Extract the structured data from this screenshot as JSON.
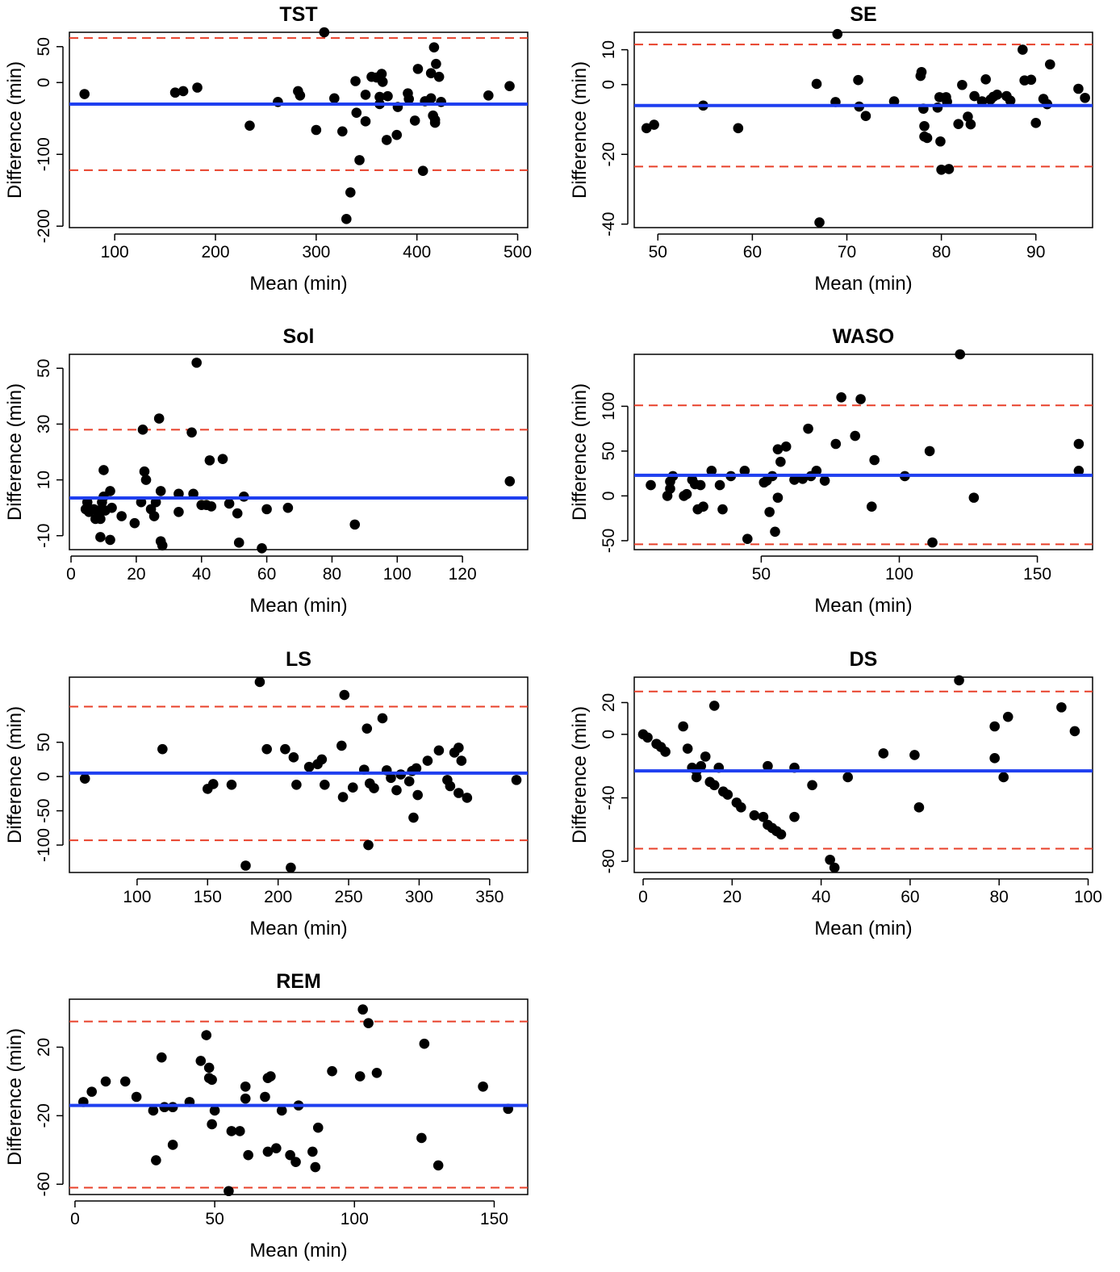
{
  "figure": {
    "title": "Bland-Altman plots"
  },
  "chart_data": [
    {
      "type": "scatter",
      "title": "TST",
      "xlabel": "Mean (min)",
      "ylabel": "Difference (min)",
      "xlim": [
        55,
        510
      ],
      "ylim": [
        -202,
        70
      ],
      "xticks": [
        100,
        200,
        300,
        400,
        500
      ],
      "yticks": [
        -200,
        -100,
        0,
        50
      ],
      "mean_diff": -30,
      "loa_upper": 62,
      "loa_lower": -122,
      "points": [
        [
          70,
          -16
        ],
        [
          160,
          -14
        ],
        [
          168,
          -12
        ],
        [
          182,
          -7
        ],
        [
          234,
          -60
        ],
        [
          262,
          -27
        ],
        [
          282,
          -12
        ],
        [
          284,
          -18
        ],
        [
          300,
          -66
        ],
        [
          308,
          70
        ],
        [
          318,
          -22
        ],
        [
          326,
          -68
        ],
        [
          334,
          -153
        ],
        [
          339,
          2
        ],
        [
          340,
          -42
        ],
        [
          343,
          -108
        ],
        [
          349,
          -17
        ],
        [
          349,
          -54
        ],
        [
          355,
          8
        ],
        [
          360,
          7
        ],
        [
          363,
          -20
        ],
        [
          363,
          -30
        ],
        [
          365,
          12
        ],
        [
          366,
          1
        ],
        [
          370,
          -80
        ],
        [
          380,
          -73
        ],
        [
          381,
          -34
        ],
        [
          391,
          -15
        ],
        [
          392,
          -23
        ],
        [
          398,
          -53
        ],
        [
          401,
          19
        ],
        [
          406,
          -123
        ],
        [
          408,
          -26
        ],
        [
          414,
          -22
        ],
        [
          414,
          13
        ],
        [
          416,
          -46
        ],
        [
          417,
          49
        ],
        [
          418,
          -56
        ],
        [
          418,
          -52
        ],
        [
          419,
          26
        ],
        [
          422,
          8
        ],
        [
          424,
          -27
        ],
        [
          471,
          -18
        ],
        [
          492,
          -5
        ],
        [
          330,
          -190
        ],
        [
          371,
          -19
        ]
      ]
    },
    {
      "type": "scatter",
      "title": "SE",
      "xlabel": "Mean (min)",
      "ylabel": "Difference (min)",
      "xlim": [
        47.5,
        96
      ],
      "ylim": [
        -41,
        15
      ],
      "xticks": [
        50,
        60,
        70,
        80,
        90
      ],
      "yticks": [
        -40,
        -20,
        0,
        10
      ],
      "mean_diff": -6,
      "loa_upper": 11.5,
      "loa_lower": -23.5,
      "points": [
        [
          48.8,
          -12.5
        ],
        [
          49.6,
          -11.5
        ],
        [
          54.8,
          -6
        ],
        [
          58.5,
          -12.5
        ],
        [
          66.8,
          0.2
        ],
        [
          67.1,
          -39.5
        ],
        [
          68.8,
          -5
        ],
        [
          69,
          14.5
        ],
        [
          71.2,
          1.3
        ],
        [
          71.3,
          -6.3
        ],
        [
          72,
          -9
        ],
        [
          75,
          -4.8
        ],
        [
          77.8,
          2.5
        ],
        [
          77.9,
          3.6
        ],
        [
          78.1,
          -6.9
        ],
        [
          78.2,
          -11.9
        ],
        [
          78.2,
          -14.9
        ],
        [
          78.5,
          -15.3
        ],
        [
          79.6,
          -6.6
        ],
        [
          79.8,
          -3.6
        ],
        [
          79.9,
          -16.3
        ],
        [
          80,
          -24.4
        ],
        [
          80.5,
          -3.6
        ],
        [
          80.6,
          -4.9
        ],
        [
          80.8,
          -24.2
        ],
        [
          81.8,
          -11.3
        ],
        [
          82.2,
          -0.1
        ],
        [
          82.8,
          -9.2
        ],
        [
          83.1,
          -11.4
        ],
        [
          83.5,
          -3.3
        ],
        [
          84.3,
          -4.8
        ],
        [
          84.7,
          1.5
        ],
        [
          85.2,
          -4.3
        ],
        [
          85.5,
          -3.5
        ],
        [
          85.9,
          -2.9
        ],
        [
          86.9,
          -3.3
        ],
        [
          87.3,
          -4.6
        ],
        [
          88.6,
          10
        ],
        [
          88.8,
          1.2
        ],
        [
          89.5,
          1.4
        ],
        [
          90,
          -11
        ],
        [
          90.8,
          -4.1
        ],
        [
          91.2,
          -5.6
        ],
        [
          91.5,
          5.8
        ],
        [
          94.5,
          -1.2
        ],
        [
          95.2,
          -3.8
        ]
      ]
    },
    {
      "type": "scatter",
      "title": "Sol",
      "xlabel": "Mean (min)",
      "ylabel": "Difference (min)",
      "xlim": [
        -0.5,
        140
      ],
      "ylim": [
        -15,
        55
      ],
      "xticks": [
        0,
        20,
        40,
        60,
        80,
        100,
        120
      ],
      "yticks": [
        -10,
        10,
        30,
        50
      ],
      "mean_diff": 3.5,
      "loa_upper": 28,
      "loa_lower": null,
      "points": [
        [
          4.5,
          -0.5
        ],
        [
          5,
          2
        ],
        [
          5.5,
          -1.5
        ],
        [
          7,
          -0.5
        ],
        [
          7.5,
          -4
        ],
        [
          8.5,
          -1
        ],
        [
          9,
          -10.5
        ],
        [
          9,
          -4
        ],
        [
          9.5,
          2
        ],
        [
          10,
          13.5
        ],
        [
          10,
          4
        ],
        [
          10.5,
          -1
        ],
        [
          12,
          6
        ],
        [
          12,
          -11.5
        ],
        [
          12.5,
          0
        ],
        [
          15.5,
          -3
        ],
        [
          19.5,
          -5.5
        ],
        [
          21.5,
          2
        ],
        [
          22,
          28
        ],
        [
          22.5,
          13
        ],
        [
          23,
          10
        ],
        [
          24.5,
          -0.5
        ],
        [
          25.5,
          -3
        ],
        [
          26,
          2
        ],
        [
          27,
          32
        ],
        [
          27.5,
          6
        ],
        [
          27.5,
          -12
        ],
        [
          28,
          -13.5
        ],
        [
          33,
          -1.5
        ],
        [
          33,
          5
        ],
        [
          37,
          27
        ],
        [
          37.5,
          5
        ],
        [
          38.5,
          52
        ],
        [
          40,
          1
        ],
        [
          41.5,
          1
        ],
        [
          42.5,
          17
        ],
        [
          43,
          0.5
        ],
        [
          46.5,
          17.5
        ],
        [
          48.5,
          1.5
        ],
        [
          51,
          -2
        ],
        [
          51.5,
          -12.5
        ],
        [
          53,
          4
        ],
        [
          58.5,
          -14.5
        ],
        [
          60,
          -0.5
        ],
        [
          66.5,
          0
        ],
        [
          87,
          -6
        ],
        [
          134.5,
          9.5
        ]
      ]
    },
    {
      "type": "scatter",
      "title": "WASO",
      "xlabel": "Mean (min)",
      "ylabel": "Difference (min)",
      "xlim": [
        4,
        170
      ],
      "ylim": [
        -60,
        158
      ],
      "xticks": [
        50,
        100,
        150
      ],
      "yticks": [
        -50,
        0,
        50,
        100
      ],
      "mean_diff": 23,
      "loa_upper": 101,
      "loa_lower": -54,
      "points": [
        [
          10,
          12
        ],
        [
          16,
          0
        ],
        [
          17,
          8
        ],
        [
          17,
          16
        ],
        [
          18,
          22
        ],
        [
          22,
          0
        ],
        [
          23,
          2
        ],
        [
          25,
          18
        ],
        [
          26,
          13
        ],
        [
          27,
          -15
        ],
        [
          28,
          12
        ],
        [
          29,
          -12
        ],
        [
          32,
          28
        ],
        [
          35,
          12
        ],
        [
          36,
          -15
        ],
        [
          39,
          22
        ],
        [
          44,
          28
        ],
        [
          45,
          -48
        ],
        [
          51,
          15
        ],
        [
          52,
          17
        ],
        [
          53,
          -18
        ],
        [
          54,
          22
        ],
        [
          55,
          -40
        ],
        [
          56,
          52
        ],
        [
          56,
          -2
        ],
        [
          57,
          38
        ],
        [
          59,
          55
        ],
        [
          62,
          18
        ],
        [
          65,
          19
        ],
        [
          67,
          75
        ],
        [
          68,
          22
        ],
        [
          70,
          28
        ],
        [
          73,
          17
        ],
        [
          77,
          58
        ],
        [
          79,
          110
        ],
        [
          84,
          67
        ],
        [
          86,
          108
        ],
        [
          90,
          -12
        ],
        [
          91,
          40
        ],
        [
          102,
          22
        ],
        [
          111,
          50
        ],
        [
          112,
          -52
        ],
        [
          122,
          158
        ],
        [
          127,
          -2
        ],
        [
          165,
          58
        ],
        [
          165,
          28
        ]
      ]
    },
    {
      "type": "scatter",
      "title": "LS",
      "xlabel": "Mean (min)",
      "ylabel": "Difference (min)",
      "xlim": [
        52,
        377
      ],
      "ylim": [
        -140,
        145
      ],
      "xticks": [
        100,
        150,
        200,
        250,
        300,
        350
      ],
      "yticks": [
        -100,
        -50,
        0,
        50
      ],
      "mean_diff": 5,
      "loa_upper": 102,
      "loa_lower": -93,
      "points": [
        [
          63,
          -3
        ],
        [
          118,
          40
        ],
        [
          150,
          -18
        ],
        [
          154,
          -11
        ],
        [
          167,
          -12
        ],
        [
          177,
          -130
        ],
        [
          187,
          138
        ],
        [
          192,
          40
        ],
        [
          205,
          40
        ],
        [
          209,
          -133
        ],
        [
          211,
          28
        ],
        [
          213,
          -12
        ],
        [
          222,
          14
        ],
        [
          228,
          18
        ],
        [
          231,
          25
        ],
        [
          233,
          -12
        ],
        [
          245,
          45
        ],
        [
          246,
          -30
        ],
        [
          247,
          119
        ],
        [
          253,
          -16
        ],
        [
          261,
          10
        ],
        [
          263,
          70
        ],
        [
          264,
          -100
        ],
        [
          265,
          -10
        ],
        [
          268,
          -17
        ],
        [
          274,
          85
        ],
        [
          277,
          9
        ],
        [
          280,
          -2
        ],
        [
          284,
          -20
        ],
        [
          287,
          3
        ],
        [
          293,
          -7
        ],
        [
          295,
          8
        ],
        [
          296,
          -60
        ],
        [
          298,
          12
        ],
        [
          299,
          -27
        ],
        [
          306,
          23
        ],
        [
          314,
          38
        ],
        [
          320,
          -5
        ],
        [
          322,
          -14
        ],
        [
          325,
          35
        ],
        [
          328,
          -24
        ],
        [
          328,
          42
        ],
        [
          330,
          23
        ],
        [
          334,
          -31
        ],
        [
          369,
          -5
        ]
      ]
    },
    {
      "type": "scatter",
      "title": "DS",
      "xlabel": "Mean (min)",
      "ylabel": "Difference (min)",
      "xlim": [
        -2,
        101
      ],
      "ylim": [
        -87,
        36
      ],
      "xticks": [
        0,
        20,
        40,
        60,
        80,
        100
      ],
      "yticks": [
        -80,
        -40,
        0,
        20
      ],
      "mean_diff": -23,
      "loa_upper": 27,
      "loa_lower": -72,
      "points": [
        [
          0,
          0
        ],
        [
          1,
          -2
        ],
        [
          3,
          -6
        ],
        [
          4,
          -8
        ],
        [
          5,
          -11
        ],
        [
          9,
          5
        ],
        [
          10,
          -9
        ],
        [
          11,
          -21
        ],
        [
          12,
          -23
        ],
        [
          12,
          -27
        ],
        [
          13,
          -20
        ],
        [
          14,
          -14
        ],
        [
          15,
          -30
        ],
        [
          16,
          -32
        ],
        [
          16,
          18
        ],
        [
          17,
          -21
        ],
        [
          18,
          -36
        ],
        [
          19,
          -38
        ],
        [
          21,
          -43
        ],
        [
          22,
          -46
        ],
        [
          25,
          -51
        ],
        [
          27,
          -52
        ],
        [
          28,
          -20
        ],
        [
          28,
          -57
        ],
        [
          29,
          -59
        ],
        [
          30,
          -61
        ],
        [
          31,
          -63
        ],
        [
          34,
          -21
        ],
        [
          34,
          -52
        ],
        [
          38,
          -32
        ],
        [
          42,
          -79
        ],
        [
          43,
          -84
        ],
        [
          46,
          -27
        ],
        [
          54,
          -12
        ],
        [
          61,
          -13
        ],
        [
          62,
          -46
        ],
        [
          71,
          34
        ],
        [
          79,
          5
        ],
        [
          79,
          -15
        ],
        [
          81,
          -27
        ],
        [
          82,
          11
        ],
        [
          94,
          17
        ],
        [
          97,
          2
        ]
      ]
    },
    {
      "type": "scatter",
      "title": "REM",
      "xlabel": "Mean (min)",
      "ylabel": "Difference (min)",
      "xlim": [
        -2,
        162
      ],
      "ylim": [
        -66,
        48
      ],
      "xticks": [
        0,
        50,
        100,
        150
      ],
      "yticks": [
        -60,
        -20,
        20
      ],
      "mean_diff": -14,
      "loa_upper": 35,
      "loa_lower": -62,
      "points": [
        [
          3,
          -12
        ],
        [
          6,
          -6
        ],
        [
          11,
          0
        ],
        [
          18,
          0
        ],
        [
          22,
          -9
        ],
        [
          28,
          -17
        ],
        [
          29,
          -46
        ],
        [
          31,
          14
        ],
        [
          32,
          -15
        ],
        [
          35,
          -15
        ],
        [
          35,
          -37
        ],
        [
          41,
          -12
        ],
        [
          45,
          12
        ],
        [
          47,
          27
        ],
        [
          48,
          8
        ],
        [
          48,
          2
        ],
        [
          49,
          1
        ],
        [
          49,
          -25
        ],
        [
          50,
          -17
        ],
        [
          55,
          -64
        ],
        [
          56,
          -29
        ],
        [
          59,
          -29
        ],
        [
          61,
          -3
        ],
        [
          61,
          -10
        ],
        [
          62,
          -43
        ],
        [
          68,
          -9
        ],
        [
          69,
          2
        ],
        [
          69,
          -41
        ],
        [
          70,
          3
        ],
        [
          72,
          -39
        ],
        [
          74,
          -17
        ],
        [
          77,
          -43
        ],
        [
          79,
          -47
        ],
        [
          80,
          -14
        ],
        [
          85,
          -41
        ],
        [
          86,
          -50
        ],
        [
          87,
          -27
        ],
        [
          92,
          6
        ],
        [
          102,
          3
        ],
        [
          103,
          42
        ],
        [
          105,
          34
        ],
        [
          108,
          5
        ],
        [
          124,
          -33
        ],
        [
          125,
          22
        ],
        [
          130,
          -49
        ],
        [
          146,
          -3
        ],
        [
          155,
          -16
        ]
      ]
    }
  ]
}
